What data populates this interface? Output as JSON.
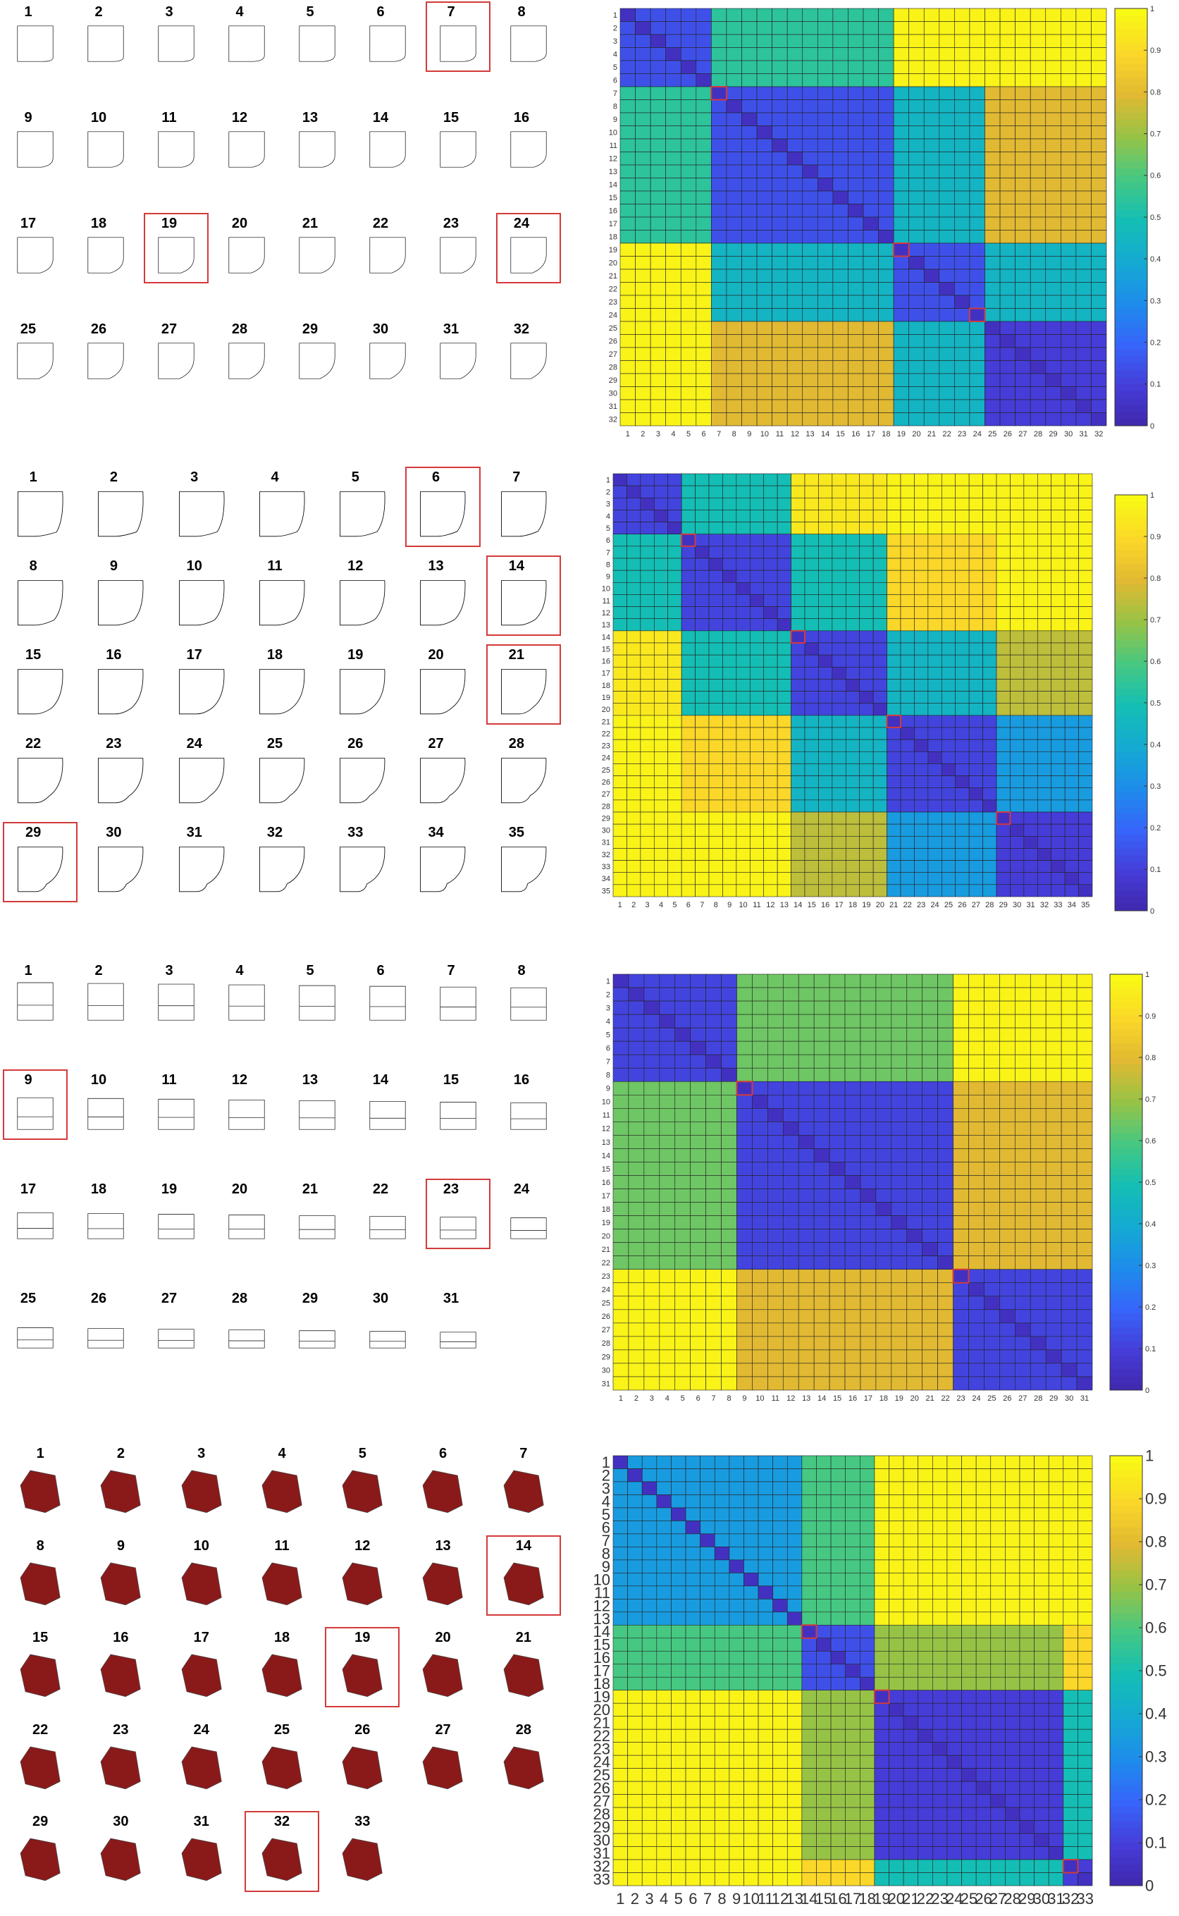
{
  "panels": [
    {
      "count": 32,
      "cols": 8,
      "shape": "bend",
      "selected": [
        7,
        19,
        24
      ],
      "chart_data": {
        "type": "heatmap",
        "x": [
          1,
          2,
          3,
          4,
          5,
          6,
          7,
          8,
          9,
          10,
          11,
          12,
          13,
          14,
          15,
          16,
          17,
          18,
          19,
          20,
          21,
          22,
          23,
          24,
          25,
          26,
          27,
          28,
          29,
          30,
          31,
          32
        ],
        "y": [
          1,
          2,
          3,
          4,
          5,
          6,
          7,
          8,
          9,
          10,
          11,
          12,
          13,
          14,
          15,
          16,
          17,
          18,
          19,
          20,
          21,
          22,
          23,
          24,
          25,
          26,
          27,
          28,
          29,
          30,
          31,
          32
        ],
        "groups": [
          [
            1,
            6
          ],
          [
            7,
            18
          ],
          [
            19,
            24
          ],
          [
            25,
            32
          ]
        ],
        "group_values": [
          [
            0.15,
            0.55,
            0.98,
            0.98
          ],
          [
            0.55,
            0.15,
            0.45,
            0.8
          ],
          [
            0.98,
            0.45,
            0.15,
            0.45
          ],
          [
            0.98,
            0.8,
            0.45,
            0.1
          ]
        ],
        "colorbar_ticks": [
          "0",
          "0.1",
          "0.2",
          "0.3",
          "0.4",
          "0.5",
          "0.6",
          "0.7",
          "0.8",
          "0.9",
          "1"
        ],
        "clim": [
          0,
          1
        ],
        "grid": true,
        "legend": "colorbar-right"
      }
    },
    {
      "count": 35,
      "cols": 7,
      "shape": "blob",
      "selected": [
        6,
        14,
        21,
        29
      ],
      "chart_data": {
        "type": "heatmap",
        "x": [
          1,
          2,
          3,
          4,
          5,
          6,
          7,
          8,
          9,
          10,
          11,
          12,
          13,
          14,
          15,
          16,
          17,
          18,
          19,
          20,
          21,
          22,
          23,
          24,
          25,
          26,
          27,
          28,
          29,
          30,
          31,
          32,
          33,
          34,
          35
        ],
        "y": [
          1,
          2,
          3,
          4,
          5,
          6,
          7,
          8,
          9,
          10,
          11,
          12,
          13,
          14,
          15,
          16,
          17,
          18,
          19,
          20,
          21,
          22,
          23,
          24,
          25,
          26,
          27,
          28,
          29,
          30,
          31,
          32,
          33,
          34,
          35
        ],
        "groups": [
          [
            1,
            5
          ],
          [
            6,
            13
          ],
          [
            14,
            20
          ],
          [
            21,
            28
          ],
          [
            29,
            35
          ]
        ],
        "group_values": [
          [
            0.12,
            0.5,
            0.95,
            0.98,
            0.98
          ],
          [
            0.5,
            0.12,
            0.5,
            0.9,
            0.98
          ],
          [
            0.95,
            0.5,
            0.12,
            0.45,
            0.75
          ],
          [
            0.98,
            0.9,
            0.45,
            0.12,
            0.35
          ],
          [
            0.98,
            0.98,
            0.75,
            0.35,
            0.1
          ]
        ],
        "colorbar_ticks": [
          "0",
          "0.1",
          "0.2",
          "0.3",
          "0.4",
          "0.5",
          "0.6",
          "0.7",
          "0.8",
          "0.9",
          "1"
        ],
        "clim": [
          0,
          1
        ],
        "grid": true,
        "legend": "colorbar-right"
      }
    },
    {
      "count": 31,
      "cols": 8,
      "shape": "flat",
      "selected": [
        9,
        23
      ],
      "chart_data": {
        "type": "heatmap",
        "x": [
          1,
          2,
          3,
          4,
          5,
          6,
          7,
          8,
          9,
          10,
          11,
          12,
          13,
          14,
          15,
          16,
          17,
          18,
          19,
          20,
          21,
          22,
          23,
          24,
          25,
          26,
          27,
          28,
          29,
          30,
          31
        ],
        "y": [
          1,
          2,
          3,
          4,
          5,
          6,
          7,
          8,
          9,
          10,
          11,
          12,
          13,
          14,
          15,
          16,
          17,
          18,
          19,
          20,
          21,
          22,
          23,
          24,
          25,
          26,
          27,
          28,
          29,
          30,
          31
        ],
        "groups": [
          [
            1,
            8
          ],
          [
            9,
            22
          ],
          [
            23,
            31
          ]
        ],
        "group_values": [
          [
            0.12,
            0.65,
            0.98
          ],
          [
            0.65,
            0.12,
            0.8
          ],
          [
            0.98,
            0.8,
            0.12
          ]
        ],
        "colorbar_ticks": [
          "0",
          "0.1",
          "0.2",
          "0.3",
          "0.4",
          "0.5",
          "0.6",
          "0.7",
          "0.8",
          "0.9",
          "1"
        ],
        "clim": [
          0,
          1
        ],
        "grid": true,
        "legend": "colorbar-right"
      }
    },
    {
      "count": 33,
      "cols": 7,
      "shape": "cloth",
      "selected": [
        14,
        19,
        32
      ],
      "chart_data": {
        "type": "heatmap",
        "x": [
          1,
          2,
          3,
          4,
          5,
          6,
          7,
          8,
          9,
          10,
          11,
          12,
          13,
          14,
          15,
          16,
          17,
          18,
          19,
          20,
          21,
          22,
          23,
          24,
          25,
          26,
          27,
          28,
          29,
          30,
          31,
          32,
          33
        ],
        "y": [
          1,
          2,
          3,
          4,
          5,
          6,
          7,
          8,
          9,
          10,
          11,
          12,
          13,
          14,
          15,
          16,
          17,
          18,
          19,
          20,
          21,
          22,
          23,
          24,
          25,
          26,
          27,
          28,
          29,
          30,
          31,
          32,
          33
        ],
        "groups": [
          [
            1,
            13
          ],
          [
            14,
            18
          ],
          [
            19,
            31
          ],
          [
            32,
            33
          ]
        ],
        "group_values": [
          [
            0.35,
            0.6,
            0.98,
            0.98
          ],
          [
            0.6,
            0.15,
            0.7,
            0.9
          ],
          [
            0.98,
            0.7,
            0.1,
            0.5
          ],
          [
            0.98,
            0.9,
            0.5,
            0.1
          ]
        ],
        "colorbar_ticks": [
          "0",
          "0.1",
          "0.2",
          "0.3",
          "0.4",
          "0.5",
          "0.6",
          "0.7",
          "0.8",
          "0.9",
          "1"
        ],
        "clim": [
          0,
          1
        ],
        "grid": true,
        "legend": "colorbar-right"
      }
    }
  ],
  "colors": {
    "selection": "#d43a3a",
    "cloth": "#8a1a1a"
  }
}
